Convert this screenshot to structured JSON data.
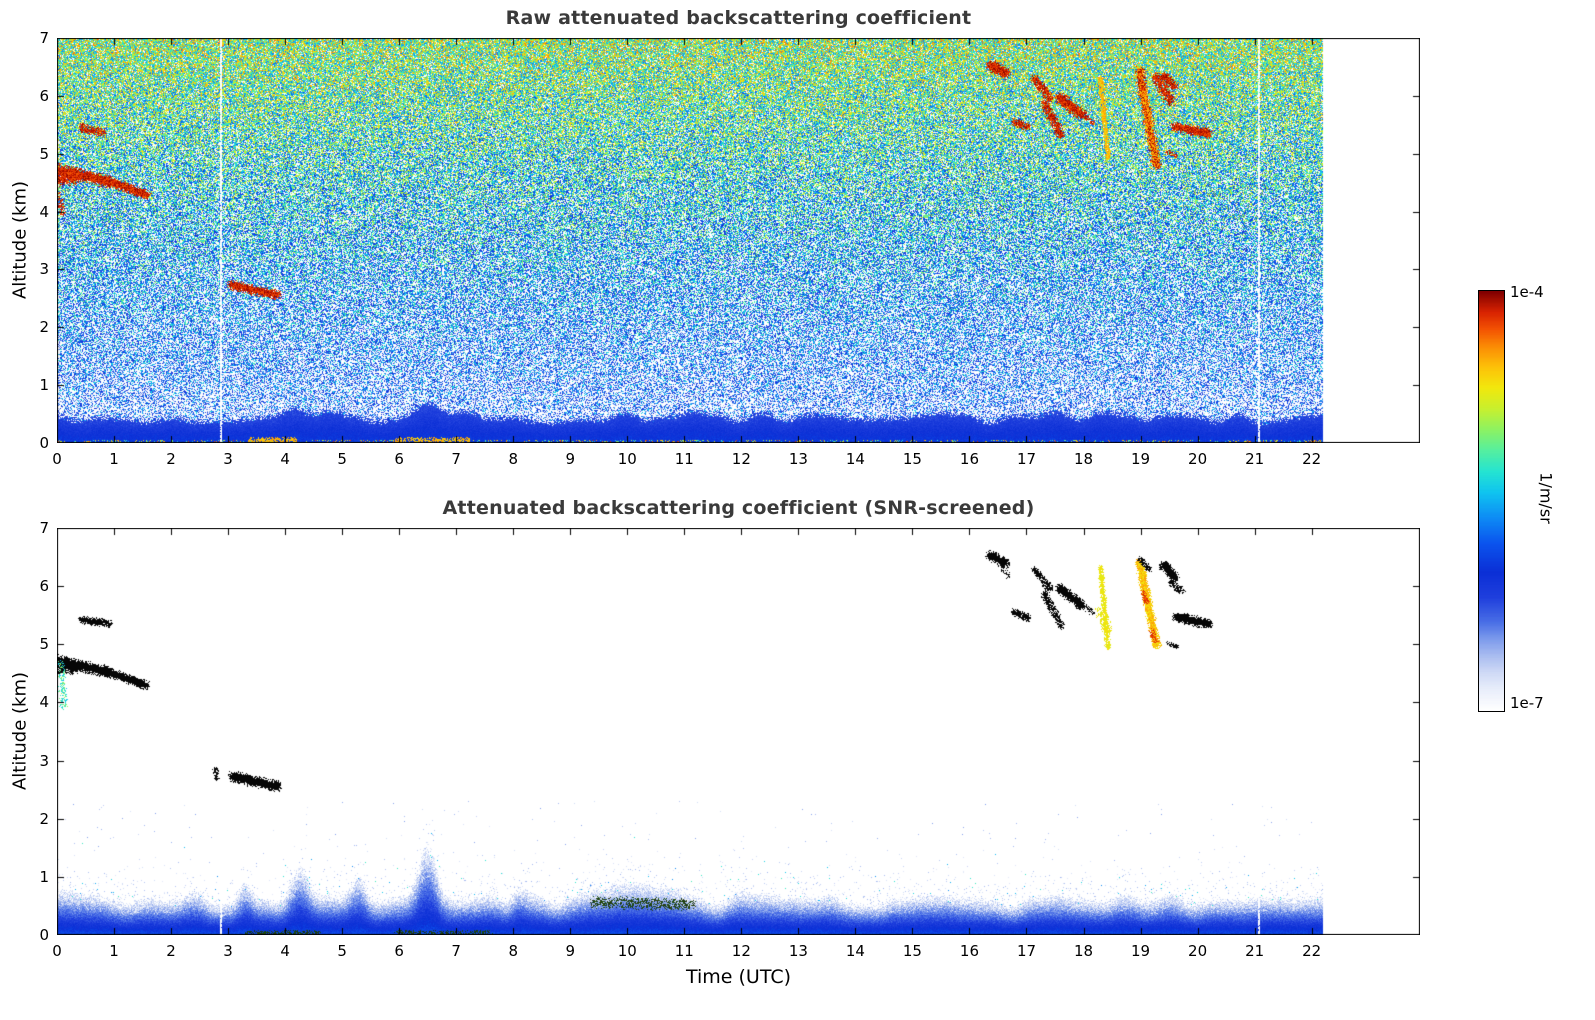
{
  "figure": {
    "background": "#ffffff",
    "axis_color": "#000000",
    "title_color": "#3a3a3a"
  },
  "colorbar": {
    "top_label": "1e-4",
    "bottom_label": "1e-7",
    "unit": "1/m/sr",
    "scale": "log",
    "min_value": "1e-7",
    "max_value": "1e-4",
    "stops": [
      [
        0.0,
        "#ffffff"
      ],
      [
        0.05,
        "#e9eefb"
      ],
      [
        0.09,
        "#cfdaf6"
      ],
      [
        0.13,
        "#aabdf0"
      ],
      [
        0.17,
        "#7d9bec"
      ],
      [
        0.21,
        "#4a6fe6"
      ],
      [
        0.27,
        "#1f3fdd"
      ],
      [
        0.33,
        "#0b2fd6"
      ],
      [
        0.4,
        "#0b55ee"
      ],
      [
        0.46,
        "#0d8cf5"
      ],
      [
        0.52,
        "#0fc4f0"
      ],
      [
        0.57,
        "#25e4d2"
      ],
      [
        0.62,
        "#55efa0"
      ],
      [
        0.67,
        "#8df262"
      ],
      [
        0.72,
        "#c8f02e"
      ],
      [
        0.77,
        "#f2e80d"
      ],
      [
        0.82,
        "#fdc108"
      ],
      [
        0.87,
        "#fb8a04"
      ],
      [
        0.91,
        "#f35202"
      ],
      [
        0.95,
        "#d92301"
      ],
      [
        1.0,
        "#7f0000"
      ]
    ]
  },
  "features_legend": [
    "t_start_utc",
    "alt_start_km",
    "t_end_utc",
    "alt_end_km",
    "width_km",
    "kind",
    "density"
  ],
  "chart_data": [
    {
      "type": "heatmap",
      "panel": "raw",
      "title": "Raw attenuated backscattering coefficient",
      "xlabel": "",
      "ylabel": "Altitude (km)",
      "xlim": [
        0,
        23.9
      ],
      "ylim": [
        0,
        7
      ],
      "data_xmax": 22.2,
      "xticks": [
        0,
        1,
        2,
        3,
        4,
        5,
        6,
        7,
        8,
        9,
        10,
        11,
        12,
        13,
        14,
        15,
        16,
        17,
        18,
        19,
        20,
        21,
        22
      ],
      "yticks": [
        0,
        1,
        2,
        3,
        4,
        5,
        6,
        7
      ],
      "value_range": [
        "1e-7",
        "1e-4"
      ],
      "value_units": "1/m/sr",
      "gap_times": [
        2.88,
        21.08
      ],
      "features": [
        [
          0.0,
          4.72,
          0.9,
          4.52,
          0.11,
          "cloud",
          1
        ],
        [
          0.9,
          4.52,
          1.55,
          4.3,
          0.09,
          "cloud",
          1
        ],
        [
          0.05,
          4.6,
          0.3,
          4.62,
          0.15,
          "cloud",
          0.9
        ],
        [
          0.02,
          4.3,
          0.1,
          3.98,
          0.06,
          "cloud",
          0.5
        ],
        [
          0.45,
          5.45,
          0.78,
          5.37,
          0.08,
          "cloud",
          0.9
        ],
        [
          3.08,
          2.73,
          3.85,
          2.56,
          0.09,
          "cloud",
          1
        ],
        [
          16.38,
          6.52,
          16.62,
          6.4,
          0.1,
          "cloud",
          1
        ],
        [
          16.8,
          5.55,
          17.02,
          5.46,
          0.07,
          "cloud",
          0.9
        ],
        [
          17.15,
          6.28,
          17.4,
          5.96,
          0.08,
          "cloud",
          0.9
        ],
        [
          17.32,
          5.86,
          17.6,
          5.33,
          0.08,
          "cloud",
          0.9
        ],
        [
          17.6,
          5.95,
          17.96,
          5.68,
          0.1,
          "cloud",
          1
        ],
        [
          18.05,
          5.62,
          18.16,
          5.54,
          0.05,
          "cloud",
          0.6
        ],
        [
          18.3,
          6.3,
          18.43,
          4.93,
          0.05,
          "warm",
          0.9
        ],
        [
          18.98,
          6.42,
          19.28,
          4.8,
          0.09,
          "warmcloud",
          1
        ],
        [
          19.3,
          6.3,
          19.52,
          5.92,
          0.1,
          "cloud",
          0.9
        ],
        [
          19.42,
          6.33,
          19.58,
          6.17,
          0.08,
          "cloud",
          0.9
        ],
        [
          19.62,
          5.46,
          20.18,
          5.35,
          0.09,
          "cloud",
          1
        ],
        [
          19.48,
          5.02,
          19.62,
          4.96,
          0.05,
          "cloud",
          0.7
        ],
        [
          3.4,
          0.05,
          4.15,
          0.05,
          0.05,
          "warm",
          0.7
        ],
        [
          5.95,
          0.05,
          7.2,
          0.05,
          0.05,
          "warm",
          0.6
        ]
      ]
    },
    {
      "type": "heatmap",
      "panel": "snr_screened",
      "title": "Attenuated backscattering coefficient (SNR-screened)",
      "xlabel": "Time (UTC)",
      "ylabel": "Altitude (km)",
      "xlim": [
        0,
        23.9
      ],
      "ylim": [
        0,
        7
      ],
      "data_xmax": 22.2,
      "xticks": [
        0,
        1,
        2,
        3,
        4,
        5,
        6,
        7,
        8,
        9,
        10,
        11,
        12,
        13,
        14,
        15,
        16,
        17,
        18,
        19,
        20,
        21,
        22
      ],
      "yticks": [
        0,
        1,
        2,
        3,
        4,
        5,
        6,
        7
      ],
      "value_range": [
        "1e-7",
        "1e-4"
      ],
      "value_units": "1/m/sr",
      "gap_times": [
        2.88,
        21.08
      ],
      "features": [
        [
          0.0,
          4.72,
          0.9,
          4.52,
          0.1,
          "black",
          1
        ],
        [
          0.9,
          4.52,
          1.55,
          4.3,
          0.08,
          "black",
          1
        ],
        [
          0.05,
          4.6,
          0.3,
          4.62,
          0.13,
          "black",
          0.9
        ],
        [
          0.45,
          5.42,
          0.9,
          5.36,
          0.07,
          "black",
          0.95
        ],
        [
          0.08,
          4.65,
          0.12,
          3.95,
          0.07,
          "greensp",
          0.4
        ],
        [
          3.1,
          2.72,
          3.85,
          2.56,
          0.1,
          "black",
          1
        ],
        [
          2.78,
          2.84,
          2.8,
          2.7,
          0.05,
          "black",
          0.8
        ],
        [
          16.38,
          6.52,
          16.62,
          6.4,
          0.09,
          "black",
          1
        ],
        [
          16.6,
          6.25,
          16.68,
          6.18,
          0.05,
          "black",
          0.6
        ],
        [
          16.8,
          5.55,
          17.02,
          5.46,
          0.07,
          "black",
          0.9
        ],
        [
          17.15,
          6.28,
          17.4,
          5.96,
          0.07,
          "black",
          0.85
        ],
        [
          17.32,
          5.86,
          17.6,
          5.33,
          0.07,
          "black",
          0.85
        ],
        [
          17.6,
          5.95,
          17.96,
          5.68,
          0.09,
          "black",
          1
        ],
        [
          18.05,
          5.62,
          18.16,
          5.54,
          0.05,
          "black",
          0.6
        ],
        [
          18.3,
          6.32,
          18.43,
          4.95,
          0.05,
          "yellow",
          0.9
        ],
        [
          18.28,
          5.6,
          18.42,
          5.25,
          0.09,
          "yellow",
          0.5
        ],
        [
          18.98,
          6.4,
          19.28,
          5.0,
          0.08,
          "yelloworange",
          1
        ],
        [
          19.0,
          6.45,
          19.14,
          6.3,
          0.06,
          "black",
          0.8
        ],
        [
          19.05,
          5.88,
          19.1,
          5.74,
          0.05,
          "red",
          0.8
        ],
        [
          19.2,
          5.22,
          19.26,
          5.06,
          0.05,
          "red",
          0.7
        ],
        [
          19.42,
          6.35,
          19.6,
          6.15,
          0.09,
          "black",
          1
        ],
        [
          19.55,
          6.05,
          19.72,
          5.92,
          0.07,
          "black",
          0.7
        ],
        [
          19.65,
          5.46,
          20.18,
          5.35,
          0.09,
          "black",
          1
        ],
        [
          19.48,
          5.02,
          19.62,
          4.96,
          0.05,
          "black",
          0.6
        ],
        [
          9.45,
          0.56,
          11.1,
          0.52,
          0.1,
          "darksp",
          0.5
        ],
        [
          3.35,
          0.04,
          4.6,
          0.04,
          0.04,
          "darksp",
          0.6
        ],
        [
          5.95,
          0.04,
          7.6,
          0.04,
          0.04,
          "darksp",
          0.5
        ]
      ]
    }
  ]
}
